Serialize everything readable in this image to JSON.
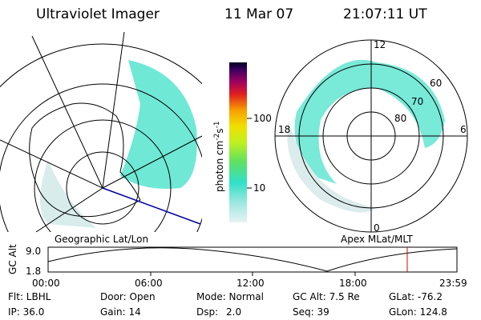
{
  "header": {
    "title": "Ultraviolet Imager",
    "date": "11 Mar 07",
    "time": "21:07:11 UT"
  },
  "left_panel": {
    "label": "Geographic Lat/Lon"
  },
  "right_panel": {
    "label": "Apex MLat/MLT",
    "mlt_labels": [
      "12",
      "18",
      "6",
      "0"
    ],
    "lat_labels": [
      "60",
      "70",
      "80"
    ]
  },
  "colorbar": {
    "unit_parts": [
      "photon cm",
      "-2",
      "s",
      "-1"
    ],
    "tick_labels": [
      "100",
      "10"
    ]
  },
  "altitude_plot": {
    "axis_label": "GC Alt",
    "y_labels": [
      "9.0",
      "1.8"
    ],
    "time_labels": [
      "00:00",
      "06:00",
      "12:00",
      "18:00",
      "23:59"
    ]
  },
  "status": {
    "rows": [
      [
        "Flt: LBHL",
        "Door: Open",
        "Mode: Normal",
        "GC Alt: 7.5 Re",
        "GLat: -76.2"
      ],
      [
        "IP: 36.0",
        "Gain: 14",
        "Dsp:",
        "2.0",
        "Seq: 39",
        "GLon: 124.8"
      ]
    ]
  }
}
